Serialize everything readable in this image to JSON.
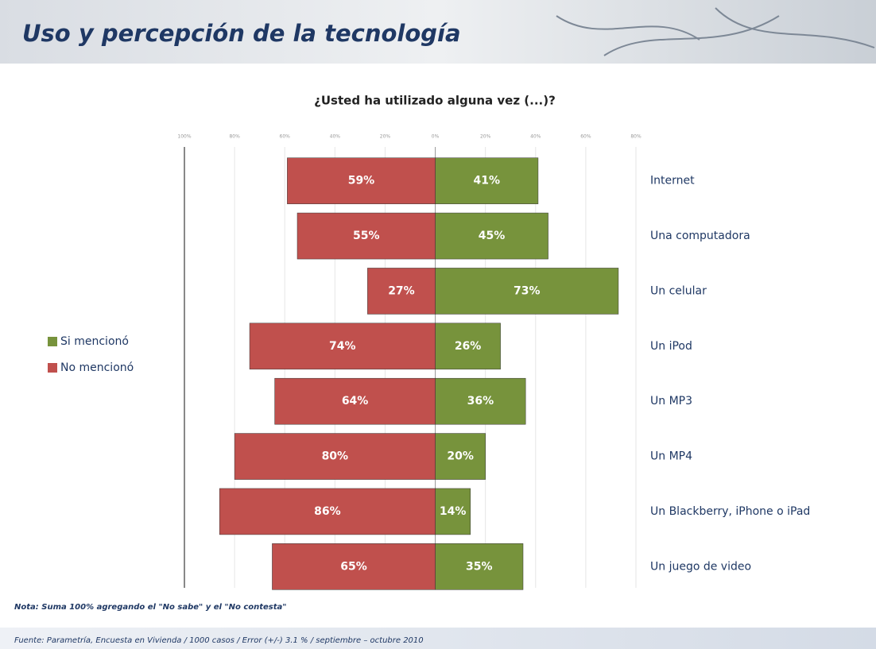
{
  "header": {
    "title": "Uso y percepción de la tecnología"
  },
  "chart_data": {
    "type": "diverging-bar",
    "title": "¿Usted ha utilizado alguna vez (...)?",
    "categories": [
      "Internet",
      "Una computadora",
      "Un celular",
      "Un iPod",
      "Un MP3",
      "Un MP4",
      "Un Blackberry, iPhone o iPad",
      "Un juego de video"
    ],
    "series": [
      {
        "name": "Si mencionó",
        "color": "#77933c",
        "values": [
          41,
          45,
          73,
          26,
          36,
          20,
          14,
          35
        ],
        "value_labels": [
          "41%",
          "45%",
          "73%",
          "26%",
          "36%",
          "20%",
          "14%",
          "35%"
        ]
      },
      {
        "name": "No mencionó",
        "color": "#c0504d",
        "values": [
          59,
          55,
          27,
          74,
          64,
          80,
          86,
          65
        ],
        "value_labels": [
          "59%",
          "55%",
          "27%",
          "74%",
          "64%",
          "80%",
          "86%",
          "65%"
        ]
      }
    ],
    "xlim": [
      -100,
      80
    ],
    "xticks": [
      {
        "value": -100,
        "label": "100%"
      },
      {
        "value": -80,
        "label": "80%"
      },
      {
        "value": -60,
        "label": "60%"
      },
      {
        "value": -40,
        "label": "40%"
      },
      {
        "value": -20,
        "label": "20%"
      },
      {
        "value": 0,
        "label": "0%"
      },
      {
        "value": 20,
        "label": "20%"
      },
      {
        "value": 40,
        "label": "40%"
      },
      {
        "value": 60,
        "label": "60%"
      },
      {
        "value": 80,
        "label": "80%"
      }
    ],
    "grid": true
  },
  "footer": {
    "note": "Nota: Suma 100% agregando el \"No sabe\" y el \"No contesta\"",
    "source": "Fuente: Parametría, Encuesta en Vivienda / 1000 casos / Error (+/-) 3.1 % / septiembre – octubre 2010"
  }
}
